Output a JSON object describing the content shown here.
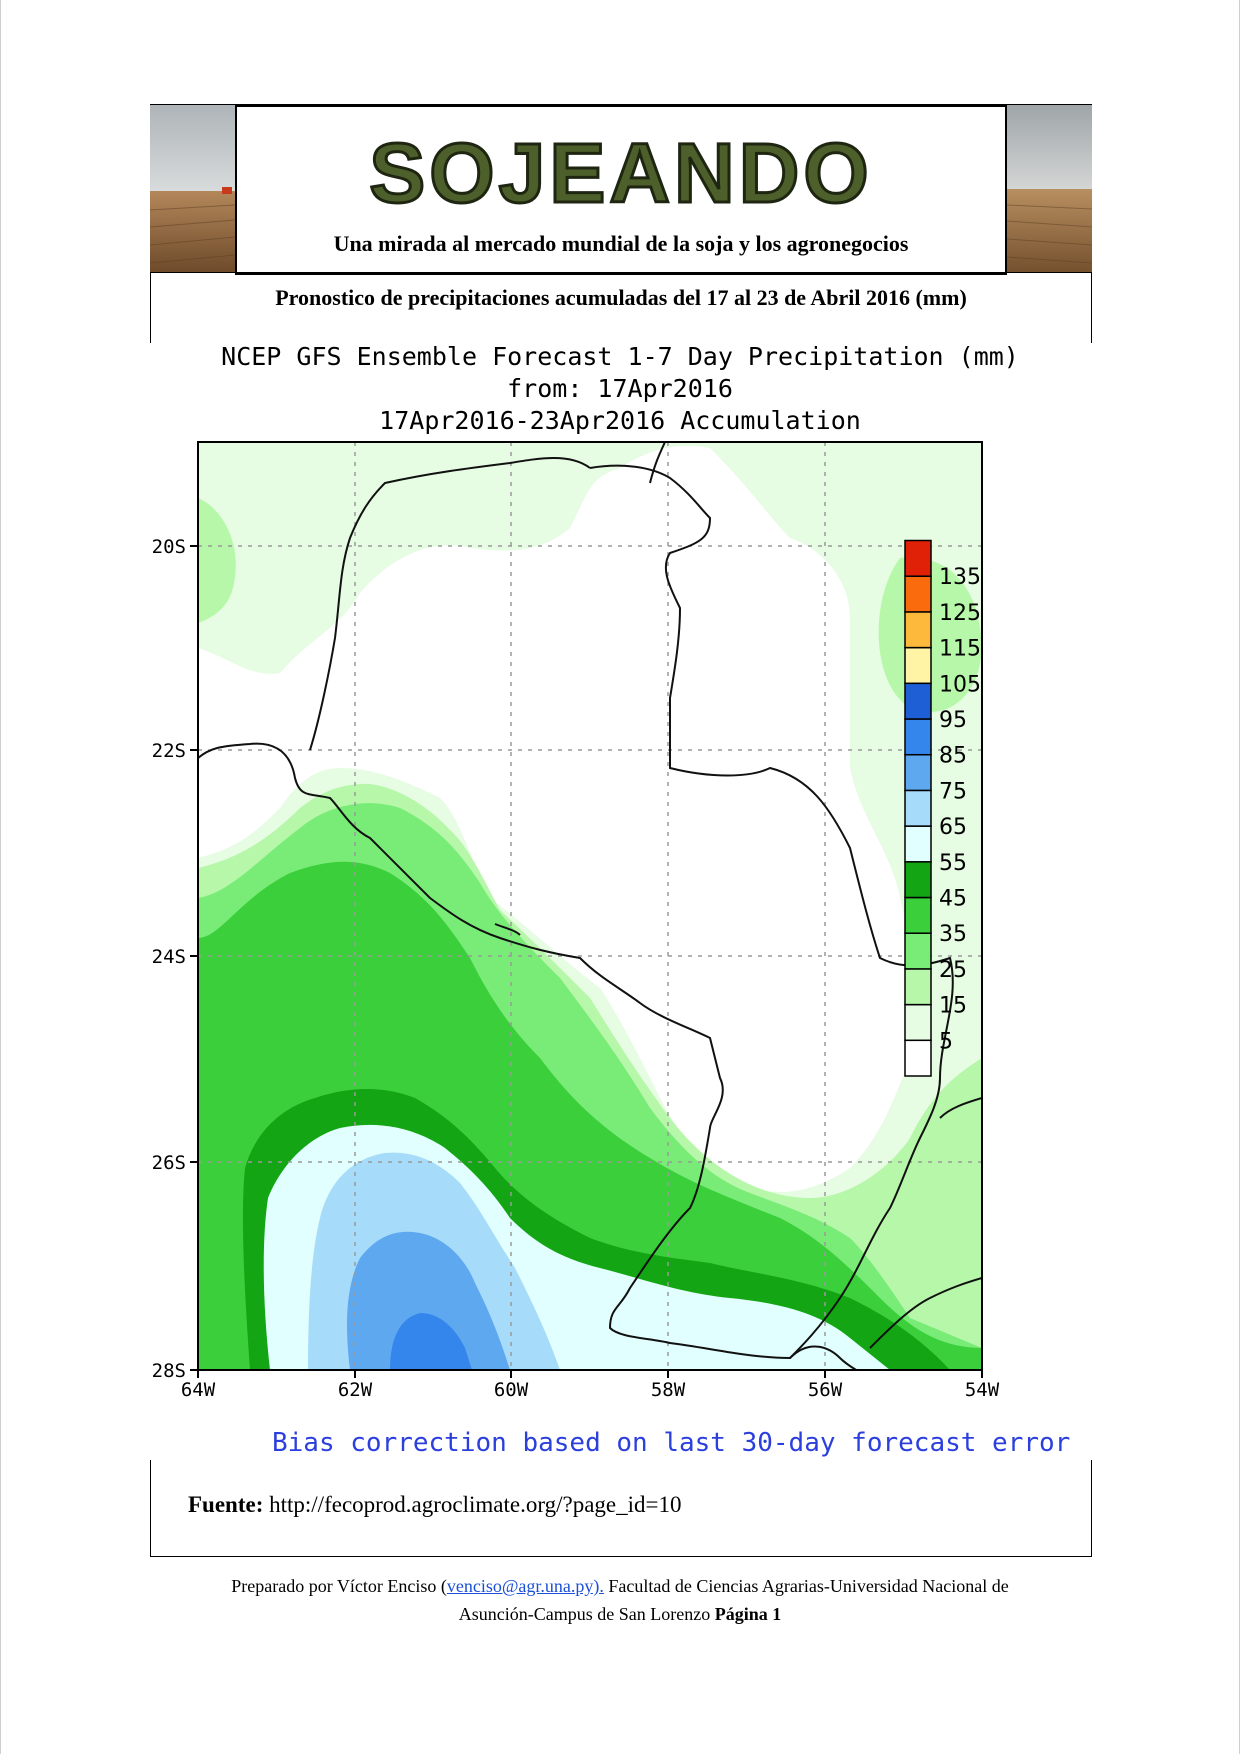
{
  "header": {
    "brand": "SOJEANDO",
    "tagline": "Una mirada al mercado mundial de la soja y los agronegocios",
    "subtitle": "Pronostico de precipitaciones acumuladas  del 17 al 23 de Abril 2016 (mm)"
  },
  "map": {
    "title_line1": "NCEP GFS Ensemble Forecast 1-7 Day Precipitation (mm)",
    "title_line2": "from: 17Apr2016",
    "title_line3": "17Apr2016-23Apr2016 Accumulation",
    "lat_labels": [
      "20S",
      "22S",
      "24S",
      "26S",
      "28S"
    ],
    "lon_labels": [
      "64W",
      "62W",
      "60W",
      "58W",
      "56W",
      "54W"
    ],
    "legend": {
      "levels": [
        "5",
        "15",
        "25",
        "35",
        "45",
        "55",
        "65",
        "75",
        "85",
        "95",
        "105",
        "115",
        "125",
        "135"
      ],
      "colors": [
        "#ffffff",
        "#e6fce3",
        "#b7f7a9",
        "#79ec78",
        "#3ccf3c",
        "#13a513",
        "#e1fffe",
        "#a7dbfa",
        "#5ea8ef",
        "#3486ec",
        "#1f5fd6",
        "#fff3a6",
        "#fdb93b",
        "#f96b0c",
        "#e02108"
      ]
    },
    "bias_note": "Bias correction based on last 30-day forecast error"
  },
  "source": {
    "label": "Fuente:",
    "url": "http://fecoprod.agroclimate.org/?page_id=10"
  },
  "footer": {
    "prefix": "Preparado por Víctor Enciso (",
    "email": "venciso@agr.una.py).",
    "middle": " Facultad de Ciencias Agrarias-Universidad Nacional de",
    "line2": "Asunción-Campus de San Lorenzo ",
    "page_label": "Página 1"
  }
}
